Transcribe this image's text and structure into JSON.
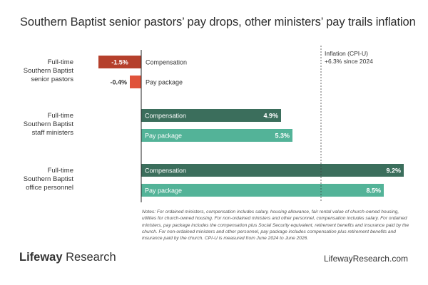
{
  "title": "Southern Baptist senior pastors’ pay drops, other ministers’ pay trails inflation",
  "chart_data": {
    "type": "bar",
    "orientation": "horizontal",
    "groups": [
      {
        "label_lines": [
          "Full-time",
          "Southern Baptist",
          "senior pastors"
        ],
        "bars": [
          {
            "name": "Compensation",
            "value": -1.5,
            "display": "-1.5%",
            "color": "#b5402c"
          },
          {
            "name": "Pay package",
            "value": -0.4,
            "display": "-0.4%",
            "color": "#e0533b"
          }
        ]
      },
      {
        "label_lines": [
          "Full-time",
          "Southern Baptist",
          "staff ministers"
        ],
        "bars": [
          {
            "name": "Compensation",
            "value": 4.9,
            "display": "4.9%",
            "color": "#3b6e5c"
          },
          {
            "name": "Pay package",
            "value": 5.3,
            "display": "5.3%",
            "color": "#53b398"
          }
        ]
      },
      {
        "label_lines": [
          "Full-time",
          "Southern Baptist",
          "office personnel"
        ],
        "bars": [
          {
            "name": "Compensation",
            "value": 9.2,
            "display": "9.2%",
            "color": "#3b6e5c"
          },
          {
            "name": "Pay package",
            "value": 8.5,
            "display": "8.5%",
            "color": "#53b398"
          }
        ]
      }
    ],
    "reference_line": {
      "value": 6.3,
      "label_lines": [
        "Inflation (CPI-U)",
        "+6.3% since 2024"
      ]
    },
    "xlim": [
      -3.2,
      9.2
    ],
    "grid": false
  },
  "notes": "Notes: For ordained ministers, compensation includes salary, housing allowance, fair rental value of church-owned housing, utilities for church-owned housing. For non-ordained ministers and other personnel, compensation includes salary. For ordained ministers, pay package includes the compensation plus Social Security equivalent, retirement benefits and insurance paid by the church. For non-ordained ministers and other personnel, pay package includes compensation plus retirement benefits and insurance paid by the church. CPI-U is measured from June 2024 to June 2026.",
  "footer": {
    "brand": "Lifeway",
    "brand_suffix": " Research",
    "site": "LifewayResearch.com"
  }
}
